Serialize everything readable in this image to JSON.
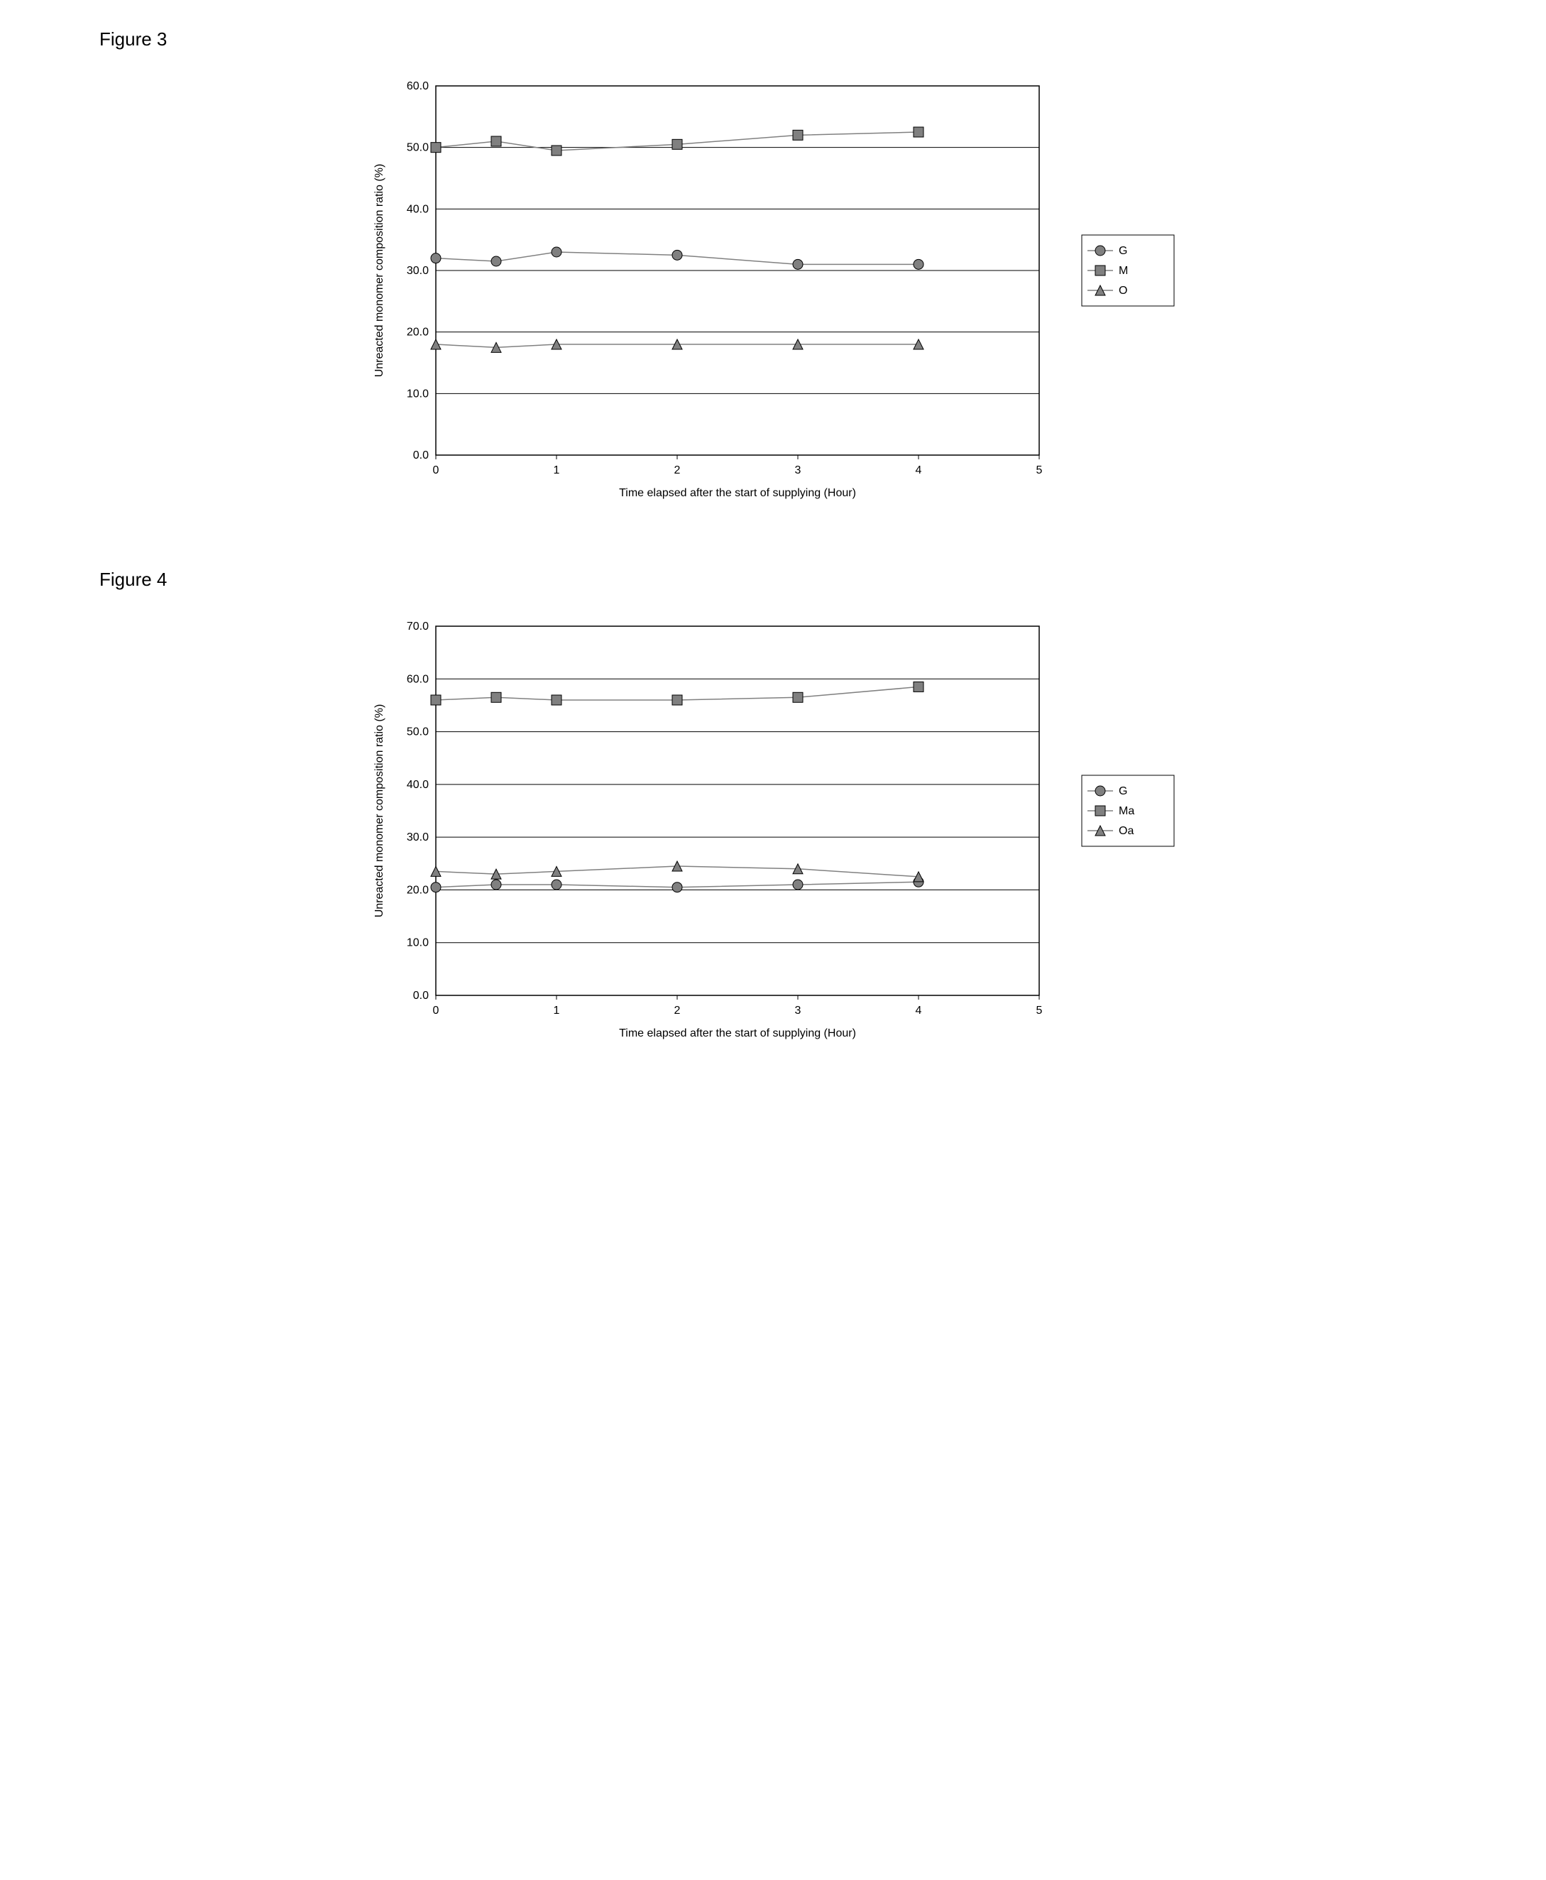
{
  "figures": [
    {
      "title": "Figure 3",
      "type": "line",
      "xlabel": "Time elapsed after the start of supplying (Hour)",
      "ylabel": "Unreacted monomer composition ratio (%)",
      "xlim": [
        0,
        5
      ],
      "ylim": [
        0,
        60
      ],
      "xticks": [
        0,
        1,
        2,
        3,
        4,
        5
      ],
      "yticks": [
        0.0,
        10.0,
        20.0,
        30.0,
        40.0,
        50.0,
        60.0
      ],
      "x_values": [
        0,
        0.5,
        1,
        2,
        3,
        4
      ],
      "background_color": "#ffffff",
      "grid_color": "#000000",
      "axis_color": "#000000",
      "tick_fontsize": 16,
      "label_fontsize": 16,
      "title_fontsize": 26,
      "line_width": 1.5,
      "marker_size": 7,
      "series": [
        {
          "name": "G",
          "marker": "circle",
          "color": "#808080",
          "fill": "#808080",
          "values": [
            32.0,
            31.5,
            33.0,
            32.5,
            31.0,
            31.0
          ]
        },
        {
          "name": "M",
          "marker": "square",
          "color": "#808080",
          "fill": "#808080",
          "values": [
            50.0,
            51.0,
            49.5,
            50.5,
            52.0,
            52.5
          ]
        },
        {
          "name": "O",
          "marker": "triangle",
          "color": "#808080",
          "fill": "#808080",
          "values": [
            18.0,
            17.5,
            18.0,
            18.0,
            18.0,
            18.0
          ]
        }
      ],
      "legend_border": "#000000",
      "legend_bg": "#ffffff"
    },
    {
      "title": "Figure 4",
      "type": "line",
      "xlabel": "Time elapsed after the start of supplying (Hour)",
      "ylabel": "Unreacted monomer composition ratio (%)",
      "xlim": [
        0,
        5
      ],
      "ylim": [
        0,
        70
      ],
      "xticks": [
        0,
        1,
        2,
        3,
        4,
        5
      ],
      "yticks": [
        0.0,
        10.0,
        20.0,
        30.0,
        40.0,
        50.0,
        60.0,
        70.0
      ],
      "x_values": [
        0,
        0.5,
        1,
        2,
        3,
        4
      ],
      "background_color": "#ffffff",
      "grid_color": "#000000",
      "axis_color": "#000000",
      "tick_fontsize": 16,
      "label_fontsize": 16,
      "title_fontsize": 26,
      "line_width": 1.5,
      "marker_size": 7,
      "series": [
        {
          "name": "G",
          "marker": "circle",
          "color": "#808080",
          "fill": "#808080",
          "values": [
            20.5,
            21.0,
            21.0,
            20.5,
            21.0,
            21.5
          ]
        },
        {
          "name": "Ma",
          "marker": "square",
          "color": "#808080",
          "fill": "#808080",
          "values": [
            56.0,
            56.5,
            56.0,
            56.0,
            56.5,
            58.5
          ]
        },
        {
          "name": "Oa",
          "marker": "triangle",
          "color": "#808080",
          "fill": "#808080",
          "values": [
            23.5,
            23.0,
            23.5,
            24.5,
            24.0,
            22.5
          ]
        }
      ],
      "legend_border": "#000000",
      "legend_bg": "#ffffff"
    }
  ]
}
